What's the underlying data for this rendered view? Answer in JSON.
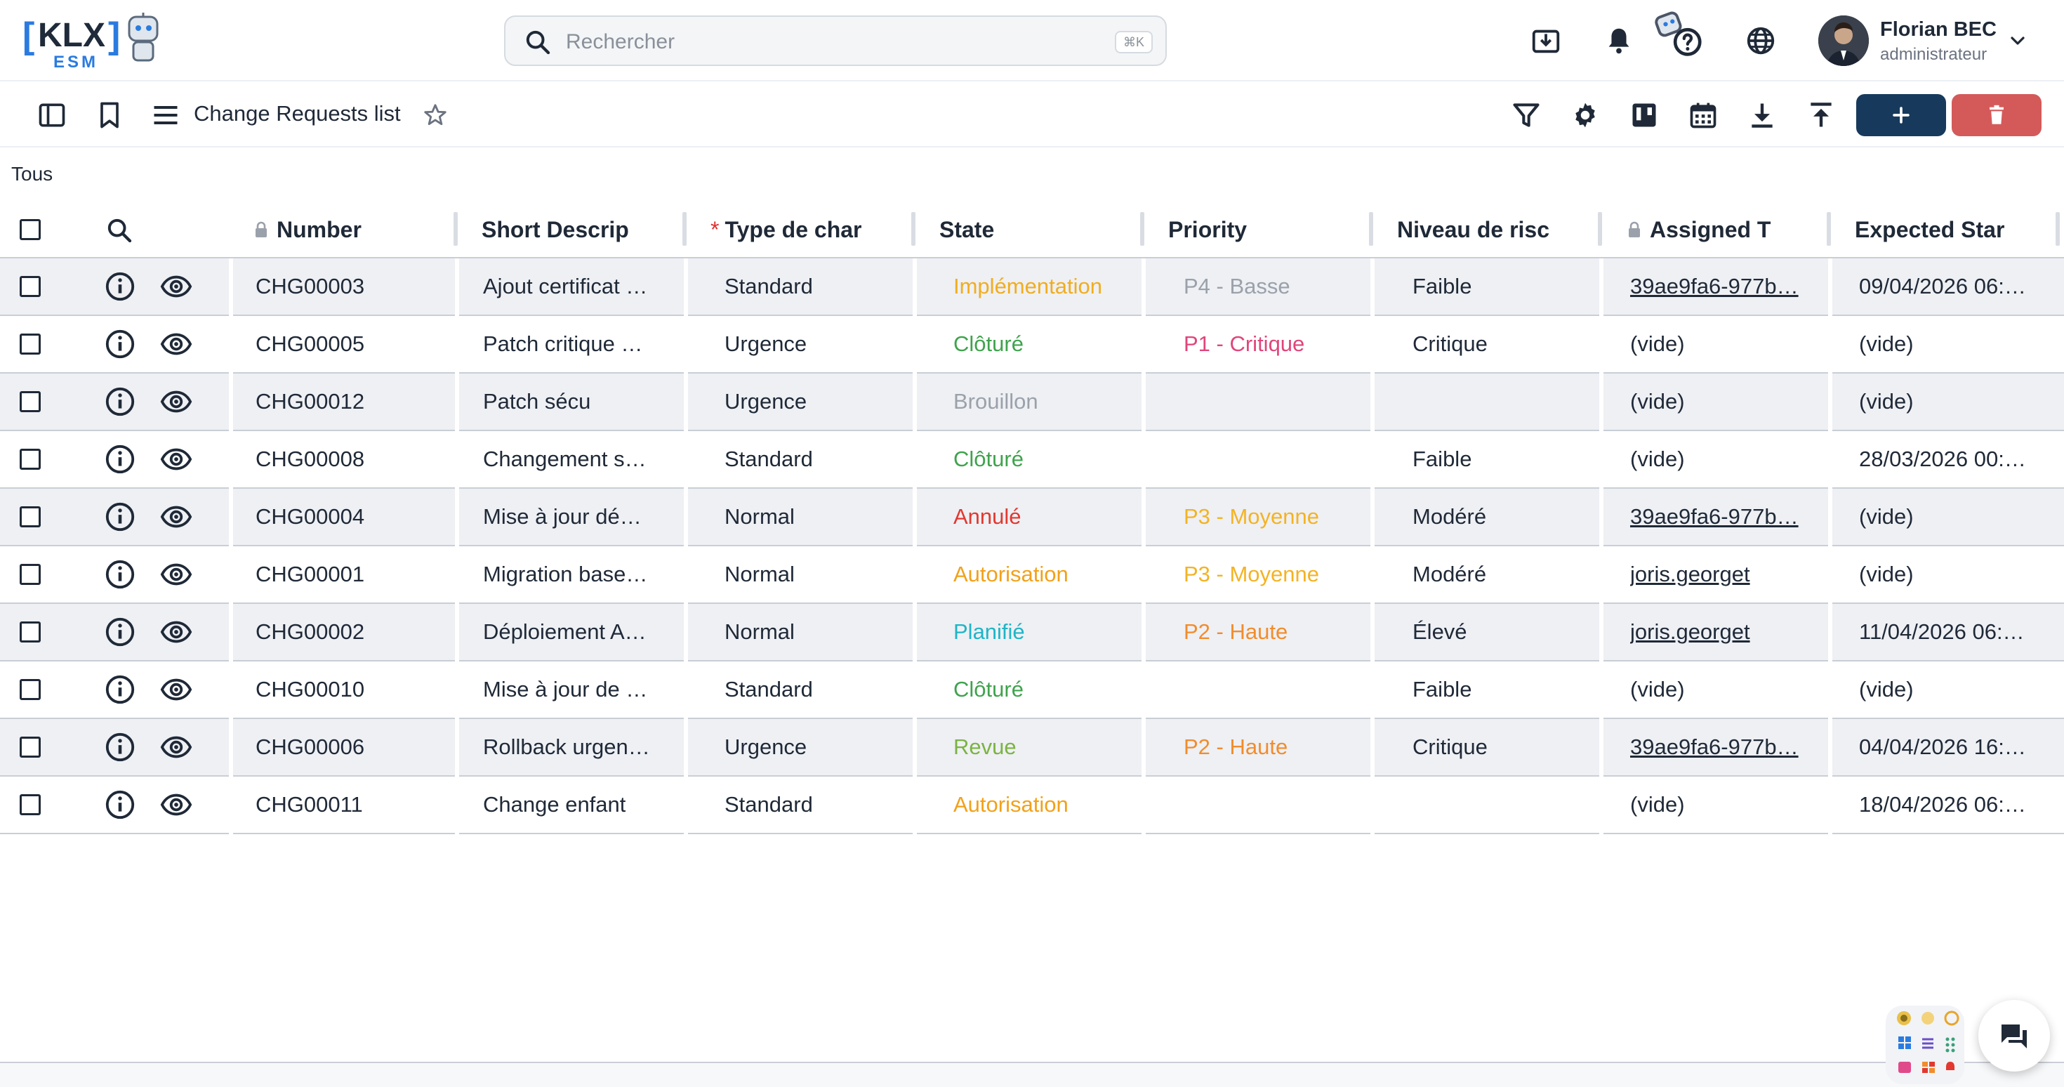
{
  "app": {
    "logo_text": "KLX",
    "logo_sub": "ESM"
  },
  "header": {
    "search_placeholder": "Rechercher",
    "search_shortcut": "⌘K",
    "user_name": "Florian BEC",
    "user_role": "administrateur"
  },
  "toolbar": {
    "list_title": "Change Requests list"
  },
  "filter": {
    "label": "Tous"
  },
  "columns": [
    {
      "label": "Number",
      "locked": true,
      "required": false
    },
    {
      "label": "Short Descrip",
      "locked": false,
      "required": false
    },
    {
      "label": "Type de char",
      "locked": false,
      "required": true
    },
    {
      "label": "State",
      "locked": false,
      "required": false
    },
    {
      "label": "Priority",
      "locked": false,
      "required": false
    },
    {
      "label": "Niveau de risc",
      "locked": false,
      "required": false
    },
    {
      "label": "Assigned T",
      "locked": true,
      "required": false
    },
    {
      "label": "Expected Star",
      "locked": false,
      "required": false
    }
  ],
  "rows": [
    {
      "number": "CHG00003",
      "desc": "Ajout certificat …",
      "type": "Standard",
      "state": "Implémentation",
      "state_color": "#f1ad1f",
      "priority": "P4 - Basse",
      "priority_color": "#9aa1aa",
      "risk": "Faible",
      "assigned": "39ae9fa6-977b…",
      "assigned_link": true,
      "start": "09/04/2026 06:…"
    },
    {
      "number": "CHG00005",
      "desc": "Patch critique …",
      "type": "Urgence",
      "state": "Clôturé",
      "state_color": "#3fa34d",
      "priority": "P1 - Critique",
      "priority_color": "#e0457b",
      "risk": "Critique",
      "assigned": "(vide)",
      "assigned_link": false,
      "start": "(vide)"
    },
    {
      "number": "CHG00012",
      "desc": "Patch sécu",
      "type": "Urgence",
      "state": "Brouillon",
      "state_color": "#9aa1aa",
      "priority": "",
      "priority_color": "#9aa1aa",
      "risk": "",
      "assigned": "(vide)",
      "assigned_link": false,
      "start": "(vide)"
    },
    {
      "number": "CHG00008",
      "desc": "Changement s…",
      "type": "Standard",
      "state": "Clôturé",
      "state_color": "#3fa34d",
      "priority": "",
      "priority_color": "#9aa1aa",
      "risk": "Faible",
      "assigned": "(vide)",
      "assigned_link": false,
      "start": "28/03/2026 00:…"
    },
    {
      "number": "CHG00004",
      "desc": "Mise à jour dé…",
      "type": "Normal",
      "state": "Annulé",
      "state_color": "#e2382f",
      "priority": "P3 - Moyenne",
      "priority_color": "#f4b324",
      "risk": "Modéré",
      "assigned": "39ae9fa6-977b…",
      "assigned_link": true,
      "start": "(vide)"
    },
    {
      "number": "CHG00001",
      "desc": "Migration base…",
      "type": "Normal",
      "state": "Autorisation",
      "state_color": "#f2a11a",
      "priority": "P3 - Moyenne",
      "priority_color": "#f4b324",
      "risk": "Modéré",
      "assigned": "joris.georget",
      "assigned_link": true,
      "start": "(vide)"
    },
    {
      "number": "CHG00002",
      "desc": "Déploiement A…",
      "type": "Normal",
      "state": "Planifié",
      "state_color": "#1fb5c6",
      "priority": "P2 - Haute",
      "priority_color": "#f28c2c",
      "risk": "Élevé",
      "assigned": "joris.georget",
      "assigned_link": true,
      "start": "11/04/2026 06:…"
    },
    {
      "number": "CHG00010",
      "desc": "Mise à jour de …",
      "type": "Standard",
      "state": "Clôturé",
      "state_color": "#3fa34d",
      "priority": "",
      "priority_color": "#9aa1aa",
      "risk": "Faible",
      "assigned": "(vide)",
      "assigned_link": false,
      "start": "(vide)"
    },
    {
      "number": "CHG00006",
      "desc": "Rollback urgen…",
      "type": "Urgence",
      "state": "Revue",
      "state_color": "#7cb342",
      "priority": "P2 - Haute",
      "priority_color": "#f28c2c",
      "risk": "Critique",
      "assigned": "39ae9fa6-977b…",
      "assigned_link": true,
      "start": "04/04/2026 16:…"
    },
    {
      "number": "CHG00011",
      "desc": "Change enfant",
      "type": "Standard",
      "state": "Autorisation",
      "state_color": "#f2a11a",
      "priority": "",
      "priority_color": "#9aa1aa",
      "risk": "",
      "assigned": "(vide)",
      "assigned_link": false,
      "start": "18/04/2026 06:…"
    }
  ],
  "icons": {
    "header": [
      "download-box-icon",
      "bell-icon",
      "help-robot-icon",
      "globe-icon",
      "chevron-down-icon"
    ],
    "toolbar": [
      "sidebar-toggle-icon",
      "bookmark-icon",
      "menu-icon",
      "star-icon",
      "filter-icon",
      "gear-icon",
      "kanban-icon",
      "calendar-icon",
      "download-icon",
      "upload-icon",
      "plus-icon",
      "trash-icon"
    ],
    "row": [
      "info-icon",
      "eye-icon"
    ],
    "footer": [
      "apps-grid-icon",
      "chat-icon"
    ]
  },
  "colors": {
    "primary_button": "#173a5c",
    "danger_button": "#d45a5a",
    "row_alt": "#eef0f4",
    "logo_blue": "#2a7be0"
  }
}
